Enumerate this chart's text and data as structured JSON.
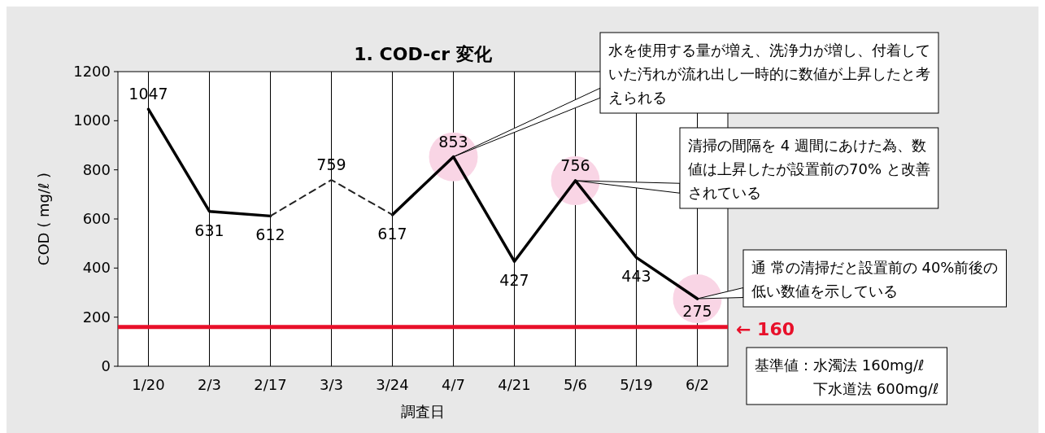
{
  "chart_data": {
    "type": "line",
    "title": "1. COD-cr 変化",
    "xlabel": "調査日",
    "ylabel": "COD ( mg/ℓ )",
    "categories": [
      "1/20",
      "2/3",
      "2/17",
      "3/3",
      "3/24",
      "4/7",
      "4/21",
      "5/6",
      "5/19",
      "6/2"
    ],
    "ylim": [
      0,
      1200
    ],
    "yticks": [
      0,
      200,
      400,
      600,
      800,
      1000,
      1200
    ],
    "grid": "x",
    "series": [
      {
        "color": "#000000",
        "line_style": "solid",
        "values": [
          1047,
          631,
          612,
          null,
          617,
          853,
          427,
          756,
          443,
          275
        ],
        "value_labels": [
          "1047",
          "631",
          "612",
          null,
          "617",
          "853",
          "427",
          "756",
          "443",
          "275"
        ]
      },
      {
        "color": "#222222",
        "line_style": "dashed",
        "values": [
          null,
          null,
          612,
          759,
          617,
          null,
          null,
          null,
          null,
          null
        ],
        "value_labels": [
          null,
          null,
          null,
          "759",
          null,
          null,
          null,
          null,
          null,
          null
        ]
      }
    ],
    "ref_lines": [
      {
        "axis": "y",
        "value": 160,
        "label": "← 160",
        "color": "#e8102a"
      }
    ],
    "annotations": [
      {
        "text": "水を使用する量が増え、洗浄力が増し、付着していた汚れが流れ出し一時的に数値が上昇したと考えられる",
        "x": "4/7",
        "y": 853
      },
      {
        "text": "清掃の間隔を 4 週間にあけた為、数値は上昇したが設置前の70% と改善されている",
        "x": "5/6",
        "y": 756
      },
      {
        "text": "通 常の清掃だと設置前の 40%前後の低い数値を示している",
        "x": "6/2",
        "y": 275
      },
      "基準値：水濁法 160mg/ℓ\n　　　　下水道法 600mg/ℓ"
    ]
  }
}
